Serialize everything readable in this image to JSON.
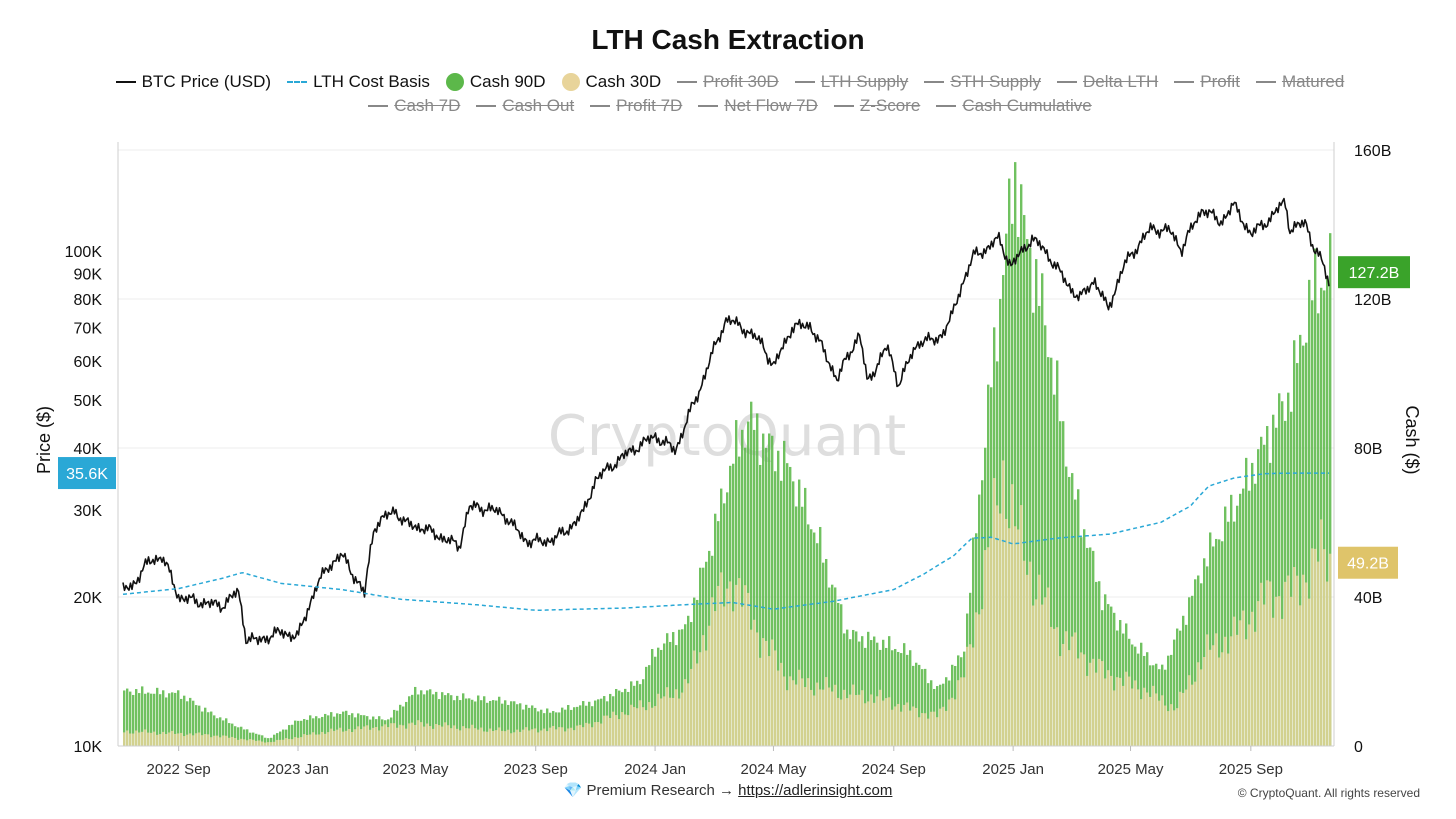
{
  "chart_data": {
    "type": "bar+line",
    "title": "LTH Cash Extraction",
    "legend": [
      {
        "label": "BTC Price (USD)",
        "style": "line",
        "color": "#111111",
        "active": true
      },
      {
        "label": "LTH Cost Basis",
        "style": "dash",
        "color": "#2aa8d6",
        "active": true
      },
      {
        "label": "Cash 90D",
        "style": "dot",
        "color": "#5cb84a",
        "active": true
      },
      {
        "label": "Cash 30D",
        "style": "dot",
        "color": "#e8d49a",
        "active": true
      },
      {
        "label": "Profit 30D",
        "style": "line",
        "active": false
      },
      {
        "label": "LTH Supply",
        "style": "line",
        "active": false
      },
      {
        "label": "STH Supply",
        "style": "line",
        "active": false
      },
      {
        "label": "Delta LTH",
        "style": "line",
        "active": false
      },
      {
        "label": "Profit",
        "style": "line",
        "active": false
      },
      {
        "label": "Matured",
        "style": "line",
        "active": false
      },
      {
        "label": "Cash 7D",
        "style": "line",
        "active": false
      },
      {
        "label": "Cash Out",
        "style": "line",
        "active": false
      },
      {
        "label": "Profit 7D",
        "style": "line",
        "active": false
      },
      {
        "label": "Net Flow 7D",
        "style": "line",
        "active": false
      },
      {
        "label": "Z-Score",
        "style": "line",
        "active": false
      },
      {
        "label": "Cash Cumulative",
        "style": "line",
        "active": false
      }
    ],
    "ylabel_left": "Price ($)",
    "ylabel_right": "Cash ($)",
    "y_left_scale": "log",
    "y_left_range": [
      10000,
      160000
    ],
    "y_left_ticks": [
      "10K",
      "20K",
      "30K",
      "40K",
      "50K",
      "60K",
      "70K",
      "80K",
      "90K",
      "100K"
    ],
    "y_left_tick_values": [
      10000,
      20000,
      30000,
      40000,
      50000,
      60000,
      70000,
      80000,
      90000,
      100000
    ],
    "y_right_range": [
      0,
      160
    ],
    "y_right_unit": "B",
    "y_right_ticks": [
      "0",
      "40B",
      "80B",
      "120B",
      "160B"
    ],
    "y_right_tick_values": [
      0,
      40,
      80,
      120,
      160
    ],
    "x_range": [
      "2022-07-01",
      "2025-11-25"
    ],
    "x_ticks": [
      {
        "label": "2022 Sep",
        "date": "2022-09-01"
      },
      {
        "label": "2023 Jan",
        "date": "2023-01-01"
      },
      {
        "label": "2023 May",
        "date": "2023-05-01"
      },
      {
        "label": "2023 Sep",
        "date": "2023-09-01"
      },
      {
        "label": "2024 Jan",
        "date": "2024-01-01"
      },
      {
        "label": "2024 May",
        "date": "2024-05-01"
      },
      {
        "label": "2024 Sep",
        "date": "2024-09-01"
      },
      {
        "label": "2025 Jan",
        "date": "2025-01-01"
      },
      {
        "label": "2025 May",
        "date": "2025-05-01"
      },
      {
        "label": "2025 Sep",
        "date": "2025-09-01"
      }
    ],
    "series": [
      {
        "name": "BTC Price (USD)",
        "axis": "left",
        "points": [
          [
            "2022-07-01",
            20500
          ],
          [
            "2022-07-15",
            21000
          ],
          [
            "2022-08-01",
            23500
          ],
          [
            "2022-08-15",
            24200
          ],
          [
            "2022-09-01",
            20000
          ],
          [
            "2022-09-15",
            19700
          ],
          [
            "2022-10-01",
            19400
          ],
          [
            "2022-10-15",
            19200
          ],
          [
            "2022-11-01",
            20500
          ],
          [
            "2022-11-09",
            16500
          ],
          [
            "2022-11-20",
            16300
          ],
          [
            "2022-12-15",
            17000
          ],
          [
            "2023-01-01",
            16600
          ],
          [
            "2023-01-20",
            21000
          ],
          [
            "2023-02-01",
            23100
          ],
          [
            "2023-02-15",
            24300
          ],
          [
            "2023-03-10",
            20200
          ],
          [
            "2023-03-20",
            27800
          ],
          [
            "2023-04-10",
            30000
          ],
          [
            "2023-04-20",
            28200
          ],
          [
            "2023-05-10",
            27500
          ],
          [
            "2023-06-15",
            25300
          ],
          [
            "2023-06-25",
            30400
          ],
          [
            "2023-07-15",
            30200
          ],
          [
            "2023-08-01",
            29200
          ],
          [
            "2023-08-20",
            26100
          ],
          [
            "2023-09-10",
            25800
          ],
          [
            "2023-10-01",
            27000
          ],
          [
            "2023-10-20",
            29600
          ],
          [
            "2023-11-01",
            34500
          ],
          [
            "2023-12-01",
            38700
          ],
          [
            "2024-01-01",
            42300
          ],
          [
            "2024-01-22",
            39500
          ],
          [
            "2024-02-15",
            52000
          ],
          [
            "2024-03-05",
            66000
          ],
          [
            "2024-03-14",
            73000
          ],
          [
            "2024-04-01",
            69700
          ],
          [
            "2024-04-20",
            64900
          ],
          [
            "2024-05-01",
            58000
          ],
          [
            "2024-05-20",
            70000
          ],
          [
            "2024-06-07",
            71000
          ],
          [
            "2024-07-05",
            55000
          ],
          [
            "2024-07-28",
            68000
          ],
          [
            "2024-08-05",
            54000
          ],
          [
            "2024-08-25",
            64000
          ],
          [
            "2024-09-06",
            53900
          ],
          [
            "2024-09-27",
            65900
          ],
          [
            "2024-10-15",
            66000
          ],
          [
            "2024-10-29",
            72300
          ],
          [
            "2024-11-12",
            88000
          ],
          [
            "2024-11-22",
            98000
          ],
          [
            "2024-12-05",
            101000
          ],
          [
            "2024-12-17",
            106000
          ],
          [
            "2024-12-30",
            93000
          ],
          [
            "2025-01-20",
            106000
          ],
          [
            "2025-02-01",
            101000
          ],
          [
            "2025-02-25",
            86000
          ],
          [
            "2025-03-10",
            80000
          ],
          [
            "2025-03-25",
            87500
          ],
          [
            "2025-04-08",
            76000
          ],
          [
            "2025-04-25",
            94000
          ],
          [
            "2025-05-22",
            111000
          ],
          [
            "2025-06-10",
            110000
          ],
          [
            "2025-06-22",
            100800
          ],
          [
            "2025-07-14",
            122000
          ],
          [
            "2025-08-01",
            114000
          ],
          [
            "2025-08-14",
            124000
          ],
          [
            "2025-09-01",
            108000
          ],
          [
            "2025-09-20",
            116000
          ],
          [
            "2025-10-06",
            126000
          ],
          [
            "2025-10-11",
            110500
          ],
          [
            "2025-10-27",
            114000
          ],
          [
            "2025-11-05",
            101000
          ],
          [
            "2025-11-14",
            94000
          ],
          [
            "2025-11-21",
            84000
          ]
        ]
      },
      {
        "name": "LTH Cost Basis",
        "axis": "left",
        "points": [
          [
            "2022-07-01",
            20200
          ],
          [
            "2022-09-01",
            20800
          ],
          [
            "2022-10-15",
            21800
          ],
          [
            "2022-11-05",
            22400
          ],
          [
            "2022-12-15",
            21300
          ],
          [
            "2023-02-15",
            20700
          ],
          [
            "2023-04-15",
            19800
          ],
          [
            "2023-07-01",
            19300
          ],
          [
            "2023-09-01",
            18800
          ],
          [
            "2023-12-01",
            19000
          ],
          [
            "2024-02-01",
            19300
          ],
          [
            "2024-03-20",
            19500
          ],
          [
            "2024-05-01",
            18900
          ],
          [
            "2024-07-01",
            19600
          ],
          [
            "2024-09-01",
            20700
          ],
          [
            "2024-10-01",
            22200
          ],
          [
            "2024-11-01",
            24200
          ],
          [
            "2024-11-20",
            26300
          ],
          [
            "2024-12-10",
            26400
          ],
          [
            "2025-01-01",
            25600
          ],
          [
            "2025-02-15",
            26300
          ],
          [
            "2025-04-10",
            26800
          ],
          [
            "2025-06-01",
            28300
          ],
          [
            "2025-07-01",
            30500
          ],
          [
            "2025-07-20",
            33500
          ],
          [
            "2025-08-15",
            34800
          ],
          [
            "2025-09-15",
            35500
          ],
          [
            "2025-10-15",
            35600
          ],
          [
            "2025-11-21",
            35600
          ]
        ]
      },
      {
        "name": "Cash 90D",
        "axis": "right",
        "unit": "B",
        "points": [
          [
            "2022-07-01",
            15
          ],
          [
            "2022-09-01",
            14
          ],
          [
            "2022-10-01",
            9
          ],
          [
            "2022-11-01",
            5
          ],
          [
            "2022-12-01",
            2
          ],
          [
            "2023-01-01",
            7
          ],
          [
            "2023-02-15",
            9
          ],
          [
            "2023-04-01",
            7
          ],
          [
            "2023-05-01",
            15
          ],
          [
            "2023-06-15",
            13
          ],
          [
            "2023-08-01",
            12
          ],
          [
            "2023-09-15",
            9
          ],
          [
            "2023-11-01",
            12
          ],
          [
            "2023-12-15",
            17
          ],
          [
            "2024-01-01",
            26
          ],
          [
            "2024-02-01",
            32
          ],
          [
            "2024-03-01",
            58
          ],
          [
            "2024-03-20",
            78
          ],
          [
            "2024-04-05",
            88
          ],
          [
            "2024-04-20",
            82
          ],
          [
            "2024-05-15",
            75
          ],
          [
            "2024-06-15",
            55
          ],
          [
            "2024-07-15",
            30
          ],
          [
            "2024-08-15",
            28
          ],
          [
            "2024-09-15",
            25
          ],
          [
            "2024-10-15",
            15
          ],
          [
            "2024-11-10",
            25
          ],
          [
            "2024-12-05",
            90
          ],
          [
            "2024-12-25",
            138
          ],
          [
            "2025-01-01",
            155
          ],
          [
            "2025-01-10",
            140
          ],
          [
            "2025-02-01",
            115
          ],
          [
            "2025-03-01",
            70
          ],
          [
            "2025-04-01",
            40
          ],
          [
            "2025-05-01",
            28
          ],
          [
            "2025-06-01",
            20
          ],
          [
            "2025-06-20",
            32
          ],
          [
            "2025-07-15",
            50
          ],
          [
            "2025-08-15",
            65
          ],
          [
            "2025-09-15",
            82
          ],
          [
            "2025-10-10",
            95
          ],
          [
            "2025-11-01",
            122
          ],
          [
            "2025-11-21",
            127.2
          ]
        ]
      },
      {
        "name": "Cash 30D",
        "axis": "right",
        "unit": "B",
        "points": [
          [
            "2022-07-01",
            4
          ],
          [
            "2022-10-01",
            3
          ],
          [
            "2022-12-01",
            1
          ],
          [
            "2023-02-01",
            4
          ],
          [
            "2023-05-01",
            6
          ],
          [
            "2023-08-01",
            4
          ],
          [
            "2023-10-15",
            5
          ],
          [
            "2024-01-01",
            12
          ],
          [
            "2024-02-01",
            16
          ],
          [
            "2024-03-01",
            38
          ],
          [
            "2024-03-20",
            45
          ],
          [
            "2024-04-15",
            30
          ],
          [
            "2024-05-15",
            18
          ],
          [
            "2024-06-15",
            16
          ],
          [
            "2024-07-15",
            14
          ],
          [
            "2024-08-15",
            13
          ],
          [
            "2024-09-15",
            10
          ],
          [
            "2024-10-15",
            8
          ],
          [
            "2024-11-10",
            18
          ],
          [
            "2024-12-01",
            45
          ],
          [
            "2024-12-20",
            74
          ],
          [
            "2025-01-01",
            60
          ],
          [
            "2025-01-20",
            45
          ],
          [
            "2025-02-15",
            30
          ],
          [
            "2025-04-01",
            20
          ],
          [
            "2025-05-15",
            15
          ],
          [
            "2025-06-15",
            10
          ],
          [
            "2025-07-15",
            25
          ],
          [
            "2025-08-15",
            30
          ],
          [
            "2025-09-15",
            40
          ],
          [
            "2025-10-15",
            42
          ],
          [
            "2025-11-10",
            52
          ],
          [
            "2025-11-21",
            49.2
          ]
        ]
      }
    ],
    "last_value_labels": {
      "lth_cost_basis": "35.6K",
      "cash_90d": "127.2B",
      "cash_30d": "49.2B"
    },
    "watermark": "CryptoQuant"
  },
  "colors": {
    "price": "#111111",
    "cost_basis": "#2aa8d6",
    "cash90": "#5cb84a",
    "cash30": "#e8d49a",
    "badge_cost_basis": "#2aa8d6",
    "badge_cash90": "#3aa32a",
    "badge_cash30": "#dfc46a",
    "grid": "#ececec"
  },
  "footer": {
    "prefix": "💎 Premium Research → ",
    "link_text": "https://adlerinsight.com",
    "copyright": "© CryptoQuant. All rights reserved"
  }
}
